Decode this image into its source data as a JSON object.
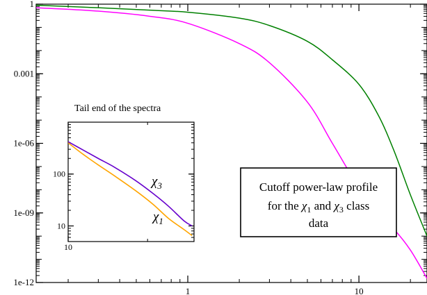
{
  "chart_data": [
    {
      "type": "line",
      "title": "",
      "xlabel": "",
      "ylabel": "",
      "xscale": "log",
      "yscale": "log",
      "xlim": [
        0.13,
        25
      ],
      "ylim": [
        1e-12,
        1
      ],
      "x_ticks": [
        {
          "value": 1,
          "label": "1"
        },
        {
          "value": 10,
          "label": "10"
        }
      ],
      "y_ticks": [
        {
          "value": 1,
          "label": "1"
        },
        {
          "value": 0.001,
          "label": "0.001"
        },
        {
          "value": 1e-06,
          "label": "1e-06"
        },
        {
          "value": 1e-09,
          "label": "1e-09"
        },
        {
          "value": 1e-12,
          "label": "1e-12"
        }
      ],
      "grid": false,
      "series": [
        {
          "color": "#008000",
          "x": [
            0.13,
            0.3,
            0.6,
            1,
            2,
            3,
            5,
            7,
            10,
            13,
            16,
            20,
            25
          ],
          "y": [
            0.9,
            0.7,
            0.55,
            0.45,
            0.25,
            0.12,
            0.025,
            0.004,
            0.00035,
            1.6e-05,
            5e-07,
            6e-09,
            1e-10
          ]
        },
        {
          "color": "#ff00ff",
          "x": [
            0.13,
            0.3,
            0.6,
            1,
            2,
            3,
            5,
            7,
            10,
            13,
            16,
            20,
            25
          ],
          "y": [
            0.7,
            0.5,
            0.3,
            0.15,
            0.02,
            0.003,
            6e-05,
            1e-06,
            1.2e-08,
            8e-10,
            2e-10,
            2.5e-11,
            1.5e-12
          ]
        }
      ]
    },
    {
      "type": "line",
      "title": "Tail end of the spectra",
      "xscale": "log",
      "yscale": "log",
      "xlim": [
        10,
        30
      ],
      "ylim": [
        5,
        1000
      ],
      "x_ticks": [
        {
          "value": 10,
          "label": "10"
        }
      ],
      "y_ticks": [
        {
          "value": 100,
          "label": "100"
        },
        {
          "value": 10,
          "label": "10"
        }
      ],
      "grid": false,
      "series": [
        {
          "name": "χ3",
          "color": "#6600cc",
          "x": [
            10,
            11.4,
            13,
            15,
            18,
            21,
            24,
            27.5,
            29.5
          ],
          "y": [
            420,
            290,
            200,
            135,
            75,
            42,
            24,
            12.5,
            10
          ]
        },
        {
          "name": "χ1",
          "color": "#ffa500",
          "x": [
            10,
            11.4,
            13,
            15,
            18,
            21,
            24,
            27.5,
            29.5
          ],
          "y": [
            400,
            240,
            150,
            92,
            48,
            26,
            14,
            8.5,
            6.5
          ]
        }
      ]
    }
  ],
  "annotation": {
    "line1": "Cutoff power-law profile",
    "line2_prefix": "for the",
    "line2_sym1": "χ",
    "line2_sub1": "1",
    "line2_mid": "and",
    "line2_sym2": "χ",
    "line2_sub2": "3",
    "line2_suffix": "class",
    "line3": "data"
  },
  "inset_labels": {
    "chi3_symbol": "χ",
    "chi3_sub": "3",
    "chi1_symbol": "χ",
    "chi1_sub": "1"
  }
}
